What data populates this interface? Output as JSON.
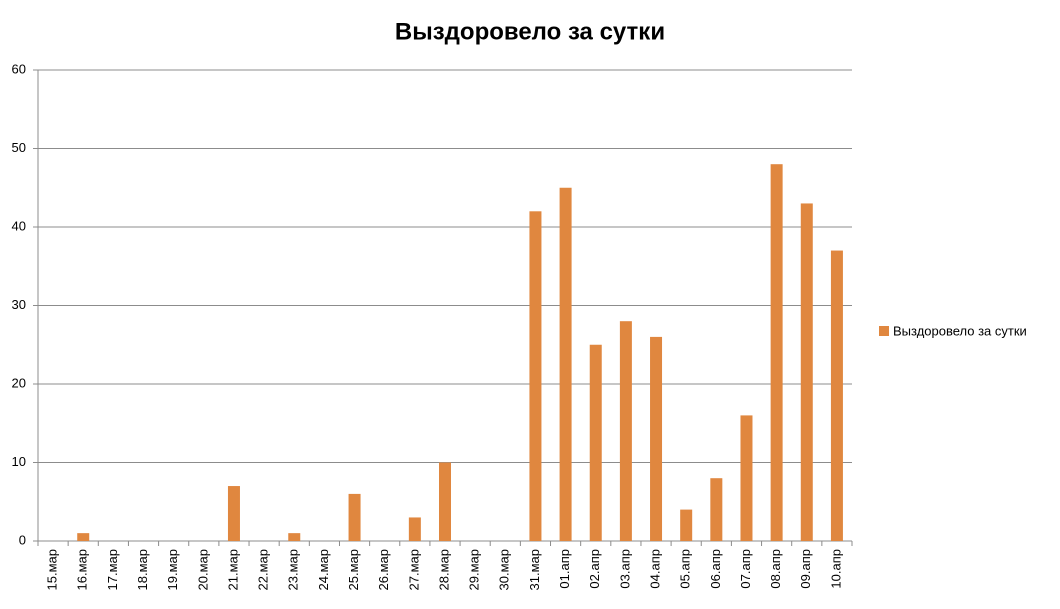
{
  "chart_data": {
    "type": "bar",
    "title": "Выздоровело за сутки",
    "categories": [
      "15.мар",
      "16.мар",
      "17.мар",
      "18.мар",
      "19.мар",
      "20.мар",
      "21.мар",
      "22.мар",
      "23.мар",
      "24.мар",
      "25.мар",
      "26.мар",
      "27.мар",
      "28.мар",
      "29.мар",
      "30.мар",
      "31.мар",
      "01.апр",
      "02.апр",
      "03.апр",
      "04.апр",
      "05.апр",
      "06.апр",
      "07.апр",
      "08.апр",
      "09.апр",
      "10.апр"
    ],
    "series": [
      {
        "name": "Выздоровело за сутки",
        "color": "#e0873f",
        "values": [
          0,
          1,
          0,
          0,
          0,
          0,
          7,
          0,
          1,
          0,
          6,
          0,
          3,
          10,
          0,
          0,
          42,
          45,
          25,
          28,
          26,
          4,
          8,
          16,
          48,
          43,
          37
        ]
      }
    ],
    "ylim": [
      0,
      60
    ],
    "yticks": [
      0,
      10,
      20,
      30,
      40,
      50,
      60
    ],
    "grid": true,
    "legend": "right"
  }
}
